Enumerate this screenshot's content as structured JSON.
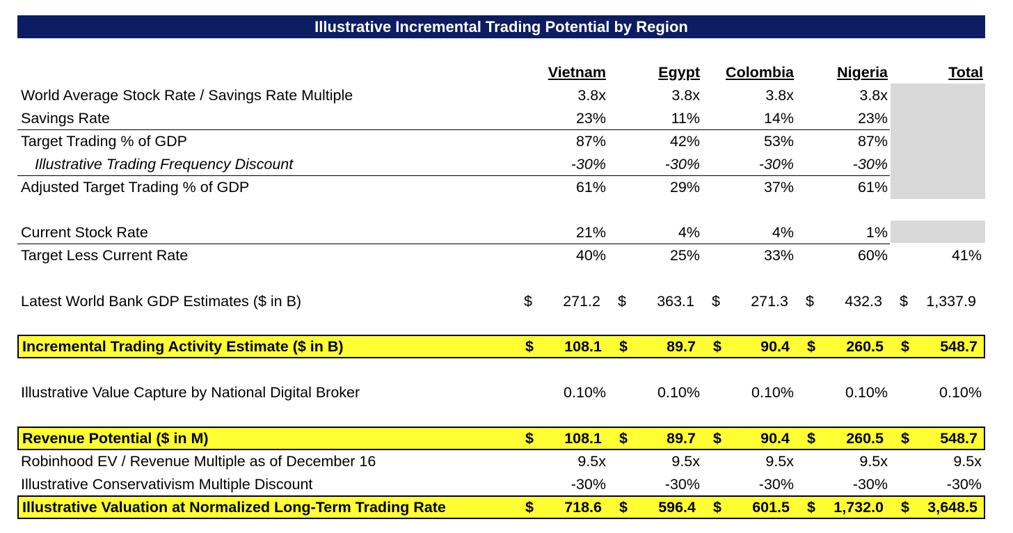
{
  "title": "Illustrative Incremental Trading Potential by Region",
  "columns": [
    "Vietnam",
    "Egypt",
    "Colombia",
    "Nigeria",
    "Total"
  ],
  "currency_symbol": "$",
  "rows": {
    "multiple": {
      "label": "World Average Stock Rate / Savings Rate Multiple",
      "values": [
        "3.8x",
        "3.8x",
        "3.8x",
        "3.8x"
      ]
    },
    "savings": {
      "label": "Savings Rate",
      "values": [
        "23%",
        "11%",
        "14%",
        "23%"
      ]
    },
    "target": {
      "label": "Target Trading % of GDP",
      "values": [
        "87%",
        "42%",
        "53%",
        "87%"
      ]
    },
    "discount": {
      "label": "Illustrative Trading Frequency Discount",
      "values": [
        "-30%",
        "-30%",
        "-30%",
        "-30%"
      ]
    },
    "adjusted": {
      "label": "Adjusted Target Trading % of GDP",
      "values": [
        "61%",
        "29%",
        "37%",
        "61%"
      ]
    },
    "current": {
      "label": "Current Stock Rate",
      "values": [
        "21%",
        "4%",
        "4%",
        "1%"
      ]
    },
    "less": {
      "label": "Target Less Current Rate",
      "values": [
        "40%",
        "25%",
        "33%",
        "60%",
        "41%"
      ]
    },
    "gdp": {
      "label": "Latest World Bank GDP Estimates ($ in B)",
      "values": [
        "271.2",
        "363.1",
        "271.3",
        "432.3",
        "1,337.9"
      ]
    },
    "incremental": {
      "label": "Incremental Trading Activity Estimate ($ in B)",
      "values": [
        "108.1",
        "89.7",
        "90.4",
        "260.5",
        "548.7"
      ]
    },
    "capture": {
      "label": "Illustrative Value Capture by National Digital Broker",
      "values": [
        "0.10%",
        "0.10%",
        "0.10%",
        "0.10%",
        "0.10%"
      ]
    },
    "revenue": {
      "label": "Revenue Potential ($ in M)",
      "values": [
        "108.1",
        "89.7",
        "90.4",
        "260.5",
        "548.7"
      ]
    },
    "ev": {
      "label": "Robinhood EV / Revenue Multiple as of December 16",
      "values": [
        "9.5x",
        "9.5x",
        "9.5x",
        "9.5x",
        "9.5x"
      ]
    },
    "conserv": {
      "label": "Illustrative Conservativism Multiple Discount",
      "values": [
        "-30%",
        "-30%",
        "-30%",
        "-30%",
        "-30%"
      ]
    },
    "valuation": {
      "label": "Illustrative Valuation at Normalized Long-Term Trading Rate",
      "values": [
        "718.6",
        "596.4",
        "601.5",
        "1,732.0",
        "3,648.5"
      ]
    }
  },
  "colors": {
    "title_bar": "#0c1d63",
    "highlight": "#ffff33",
    "gray_cell": "#d9d9d9"
  }
}
